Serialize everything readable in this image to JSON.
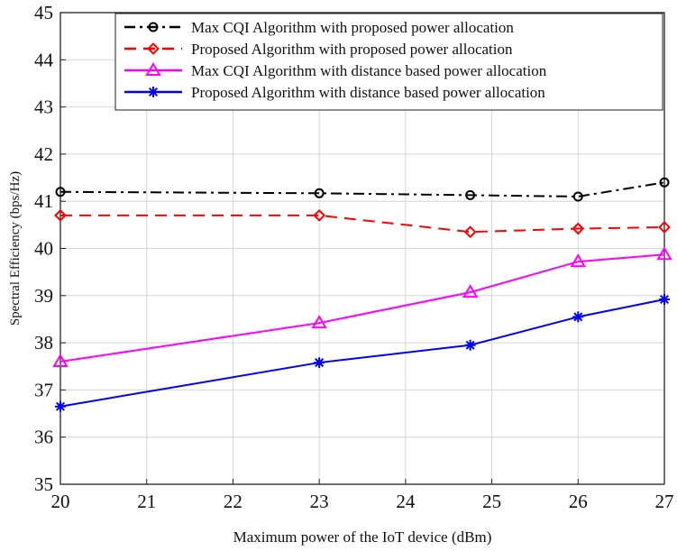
{
  "chart_data": {
    "type": "line",
    "title": "",
    "xlabel": "Maximum power of the IoT device (dBm)",
    "ylabel": "Spectral Efficiency (bps/Hz)",
    "xlim": [
      20,
      27
    ],
    "ylim": [
      35,
      45
    ],
    "xticks": [
      "20",
      "21",
      "22",
      "23",
      "24",
      "25",
      "26",
      "27"
    ],
    "yticks": [
      "35",
      "36",
      "37",
      "38",
      "39",
      "40",
      "41",
      "42",
      "43",
      "44",
      "45"
    ],
    "grid": true,
    "legend_position": "top-right",
    "series": [
      {
        "name": "Max CQI Algorithm with proposed power allocation",
        "color": "#000000",
        "line_style": "dash-dot",
        "marker": "circle",
        "x": [
          20,
          23,
          24.75,
          26,
          27
        ],
        "y": [
          41.2,
          41.17,
          41.13,
          41.1,
          41.4
        ]
      },
      {
        "name": "Proposed Algorithm with proposed power allocation",
        "color": "#ff0000",
        "line_style": "dashed",
        "marker": "diamond",
        "x": [
          20,
          23,
          24.75,
          26,
          27
        ],
        "y": [
          40.7,
          40.7,
          40.35,
          40.42,
          40.45
        ]
      },
      {
        "name": "Max CQI Algorithm with distance based power allocation",
        "color": "#ff00ff",
        "line_style": "solid",
        "marker": "triangle",
        "x": [
          20,
          23,
          24.75,
          26,
          27
        ],
        "y": [
          37.6,
          38.42,
          39.07,
          39.72,
          39.87
        ]
      },
      {
        "name": "Proposed Algorithm with distance based power allocation",
        "color": "#0000ff",
        "line_style": "solid",
        "marker": "asterisk",
        "x": [
          20,
          23,
          24.75,
          26,
          27
        ],
        "y": [
          36.65,
          37.58,
          37.95,
          38.55,
          38.92
        ]
      }
    ]
  }
}
